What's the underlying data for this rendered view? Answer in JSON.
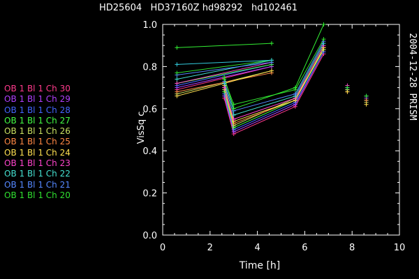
{
  "chart_data": {
    "type": "line",
    "title": "HD25604   HD37160Z hd98292   hd102461",
    "side_label": "2004-12-28 PRISM",
    "xlabel": "Time [h]",
    "ylabel": "VisSq c",
    "xlim": [
      0,
      10
    ],
    "ylim": [
      0.0,
      1.0
    ],
    "xticks": [
      "0",
      "2",
      "4",
      "6",
      "8",
      "10"
    ],
    "yticks": [
      "0.0",
      "0.2",
      "0.4",
      "0.6",
      "0.8",
      "1.0"
    ],
    "x": [
      0.6,
      4.6,
      2.6,
      3.0,
      5.6,
      6.8,
      7.8,
      8.6
    ],
    "series": [
      {
        "name": "OB 1 Bl 1 Ch 30",
        "color": "#ff3a8c",
        "values": [
          0.69,
          0.8,
          0.65,
          0.48,
          0.61,
          0.86,
          0.69,
          0.64
        ]
      },
      {
        "name": "OB 1 Bl 1 Ch 29",
        "color": "#b040ff",
        "values": [
          0.7,
          0.8,
          0.66,
          0.49,
          0.62,
          0.87,
          0.7,
          0.65
        ]
      },
      {
        "name": "OB 1 Bl 1 Ch 28",
        "color": "#4466ff",
        "values": [
          0.71,
          0.81,
          0.67,
          0.5,
          0.63,
          0.87,
          0.69,
          0.64
        ]
      },
      {
        "name": "OB 1 Bl 1 Ch 27",
        "color": "#44ff44",
        "values": [
          0.72,
          0.81,
          0.68,
          0.51,
          0.64,
          0.88,
          0.69,
          0.64
        ]
      },
      {
        "name": "OB 1 Bl 1 Ch 26",
        "color": "#c8e060",
        "values": [
          0.67,
          0.78,
          0.69,
          0.52,
          0.65,
          0.88,
          0.69,
          0.63
        ]
      },
      {
        "name": "OB 1 Bl 1 Ch 25",
        "color": "#ff8844",
        "values": [
          0.68,
          0.77,
          0.7,
          0.53,
          0.64,
          0.89,
          0.68,
          0.64
        ]
      },
      {
        "name": "OB 1 Bl 1 Ch 24",
        "color": "#ffe050",
        "values": [
          0.66,
          0.78,
          0.71,
          0.54,
          0.64,
          0.89,
          0.68,
          0.62
        ]
      },
      {
        "name": "OB 1 Bl 1 Ch 23",
        "color": "#ff44cc",
        "values": [
          0.72,
          0.82,
          0.7,
          0.55,
          0.65,
          0.9,
          0.71,
          0.66
        ]
      },
      {
        "name": "OB 1 Bl 1 Ch 22",
        "color": "#44e0d0",
        "values": [
          0.74,
          0.83,
          0.72,
          0.57,
          0.66,
          0.91,
          0.7,
          0.66
        ]
      },
      {
        "name": "OB 1 Bl 1 Ch 21",
        "color": "#5588ff",
        "values": [
          0.76,
          0.82,
          0.73,
          0.59,
          0.67,
          0.92,
          0.7,
          0.66
        ]
      },
      {
        "name": "OB 1 Bl 1 Ch 20",
        "color": "#30e030",
        "values": [
          0.77,
          0.83,
          0.74,
          0.62,
          0.69,
          0.93,
          0.7,
          0.66
        ]
      },
      {
        "name": "",
        "color": "#33ee33",
        "values": [
          0.89,
          0.91,
          0.75,
          0.6,
          0.7,
          1.0,
          null,
          null
        ]
      },
      {
        "name": "",
        "color": "#33ccdd",
        "values": [
          0.81,
          0.83,
          null,
          null,
          null,
          null,
          null,
          null
        ]
      }
    ],
    "grid": false,
    "legend": "left"
  }
}
